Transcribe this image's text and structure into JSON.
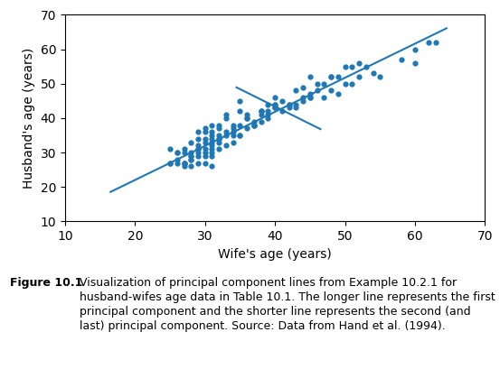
{
  "chart_data": {
    "type": "scatter",
    "x_label": "Wife's age (years)",
    "y_label": "Husband's age (years)",
    "xlim": [
      10,
      70
    ],
    "ylim": [
      10,
      70
    ],
    "xticks": [
      10,
      20,
      30,
      40,
      50,
      60,
      70
    ],
    "yticks": [
      10,
      20,
      30,
      40,
      50,
      60,
      70
    ],
    "grid": false,
    "series": [
      {
        "type": "scatter",
        "x": [
          25,
          25,
          25,
          26,
          26,
          26,
          26,
          27,
          27,
          27,
          27,
          27,
          27,
          28,
          28,
          28,
          28,
          28,
          28,
          28,
          29,
          29,
          29,
          29,
          29,
          29,
          29,
          29,
          30,
          30,
          30,
          30,
          30,
          30,
          30,
          30,
          31,
          31,
          31,
          31,
          31,
          31,
          31,
          31,
          31,
          31,
          32,
          32,
          32,
          32,
          32,
          32,
          32,
          33,
          33,
          33,
          33,
          33,
          34,
          34,
          34,
          34,
          34,
          35,
          35,
          35,
          35,
          35,
          36,
          36,
          36,
          36,
          37,
          37,
          37,
          37,
          38,
          38,
          38,
          38,
          38,
          39,
          39,
          39,
          39,
          40,
          40,
          40,
          40,
          40,
          41,
          41,
          42,
          42,
          42,
          43,
          43,
          43,
          44,
          44,
          44,
          45,
          45,
          45,
          45,
          46,
          46,
          47,
          47,
          48,
          48,
          48,
          49,
          49,
          50,
          50,
          51,
          51,
          52,
          52,
          53,
          54,
          55,
          58,
          60,
          60,
          62,
          63
        ],
        "values": [
          27,
          31,
          27,
          27,
          28,
          30,
          30,
          26,
          31,
          27,
          27,
          30,
          27,
          30,
          29,
          29,
          28,
          28,
          26,
          33,
          27,
          30,
          32,
          34,
          36,
          29,
          31,
          31,
          27,
          30,
          31,
          34,
          36,
          29,
          33,
          37,
          31,
          30,
          29,
          38,
          33,
          34,
          36,
          35,
          32,
          26,
          34,
          33,
          35,
          37,
          31,
          38,
          34,
          32,
          36,
          35,
          41,
          40,
          33,
          35,
          38,
          37,
          36,
          35,
          42,
          35,
          38,
          45,
          40,
          37,
          41,
          40,
          38,
          38,
          39,
          38,
          42,
          39,
          41,
          42,
          42,
          40,
          42,
          44,
          41,
          44,
          44,
          43,
          43,
          46,
          42,
          45,
          43,
          44,
          44,
          44,
          43,
          48,
          45,
          46,
          49,
          46,
          46,
          47,
          52,
          48,
          50,
          46,
          50,
          48,
          52,
          52,
          47,
          52,
          50,
          55,
          50,
          55,
          52,
          56,
          55,
          53,
          52,
          57,
          56,
          60,
          62,
          62
        ]
      },
      {
        "type": "line",
        "x": [
          16.5,
          64.5
        ],
        "values": [
          18.557554,
          66.067954
        ]
      },
      {
        "type": "line",
        "x": [
          34.5,
          46.5
        ],
        "values": [
          48.913954,
          36.791554
        ]
      }
    ],
    "annotations": [
      "Figure 10.1",
      "Visualization of principal component lines from Example 10.2.1 for husband-wifes age data in Table 10.1. The longer line represents the first principal component and the shorter line represents the second (and last) principal component. Source: Data from Hand et al. (1994)."
    ]
  }
}
